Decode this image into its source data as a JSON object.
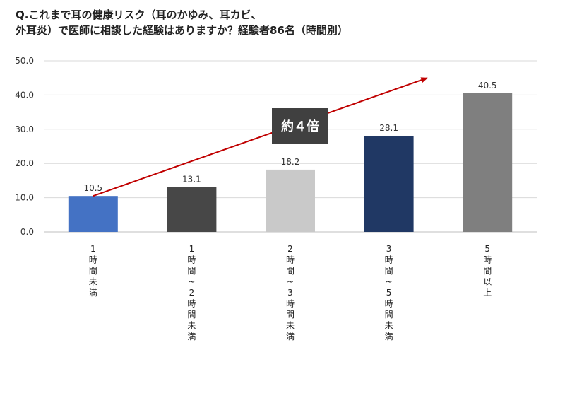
{
  "chart_data": {
    "type": "bar",
    "title_lines": [
      "Q.これまで耳の健康リスク（耳のかゆみ、耳カビ、",
      "外耳炎）で医師に相談した経験はありますか？経験者86名（時間別）"
    ],
    "categories": [
      "1時間未満",
      "1時間~2時間未満",
      "2時間~3時間未満",
      "3時間~5時間未満",
      "5時間以上"
    ],
    "values": [
      10.5,
      13.1,
      18.2,
      28.1,
      40.5
    ],
    "value_labels": [
      "10.5",
      "13.1",
      "18.2",
      "28.1",
      "40.5"
    ],
    "bar_colors": [
      "#4472c4",
      "#474747",
      "#c9c9c9",
      "#203864",
      "#7f7f7f"
    ],
    "ylim": [
      0,
      50
    ],
    "yticks": [
      "0.0",
      "10.0",
      "20.0",
      "30.0",
      "40.0",
      "50.0"
    ],
    "gridlines": true,
    "annotation": {
      "text": "約４倍",
      "arrow_from": 10.5,
      "arrow_to": 45,
      "arrow_color": "#c00000",
      "box_color": "#404040"
    }
  }
}
